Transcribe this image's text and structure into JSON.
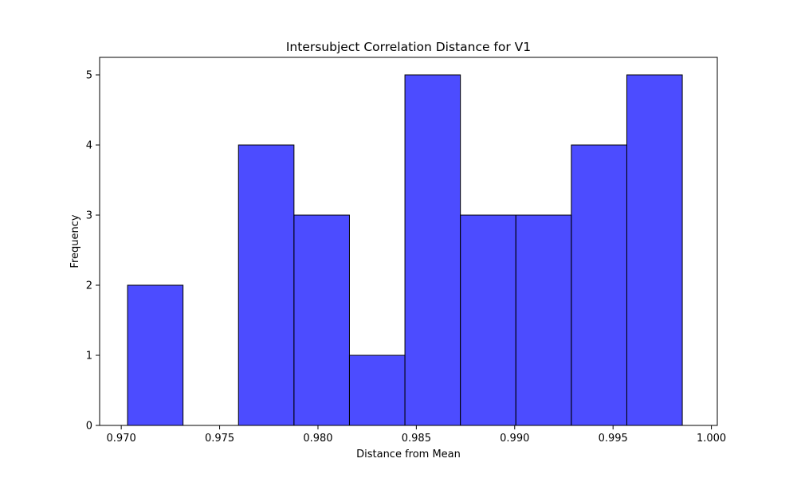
{
  "chart_data": {
    "type": "bar",
    "title": "Intersubject Correlation Distance for V1",
    "xlabel": "Distance from Mean",
    "ylabel": "Frequency",
    "bin_edges": [
      0.97032,
      0.97314,
      0.97596,
      0.97878,
      0.9816,
      0.98442,
      0.98724,
      0.99006,
      0.99288,
      0.9957,
      0.99852
    ],
    "values": [
      2,
      0,
      4,
      3,
      1,
      5,
      3,
      3,
      4,
      5
    ],
    "xlim": [
      0.9689,
      1.0003
    ],
    "ylim": [
      0,
      5.25
    ],
    "xticks": [
      0.97,
      0.975,
      0.98,
      0.985,
      0.99,
      0.995,
      1.0
    ],
    "xtick_labels": [
      "0.970",
      "0.975",
      "0.980",
      "0.985",
      "0.990",
      "0.995",
      "1.000"
    ],
    "yticks": [
      0,
      1,
      2,
      3,
      4,
      5
    ],
    "ytick_labels": [
      "0",
      "1",
      "2",
      "3",
      "4",
      "5"
    ],
    "grid": false,
    "colors": {
      "bar_fill": "#0000ff",
      "bar_edge": "#000000",
      "axis": "#000000"
    }
  }
}
